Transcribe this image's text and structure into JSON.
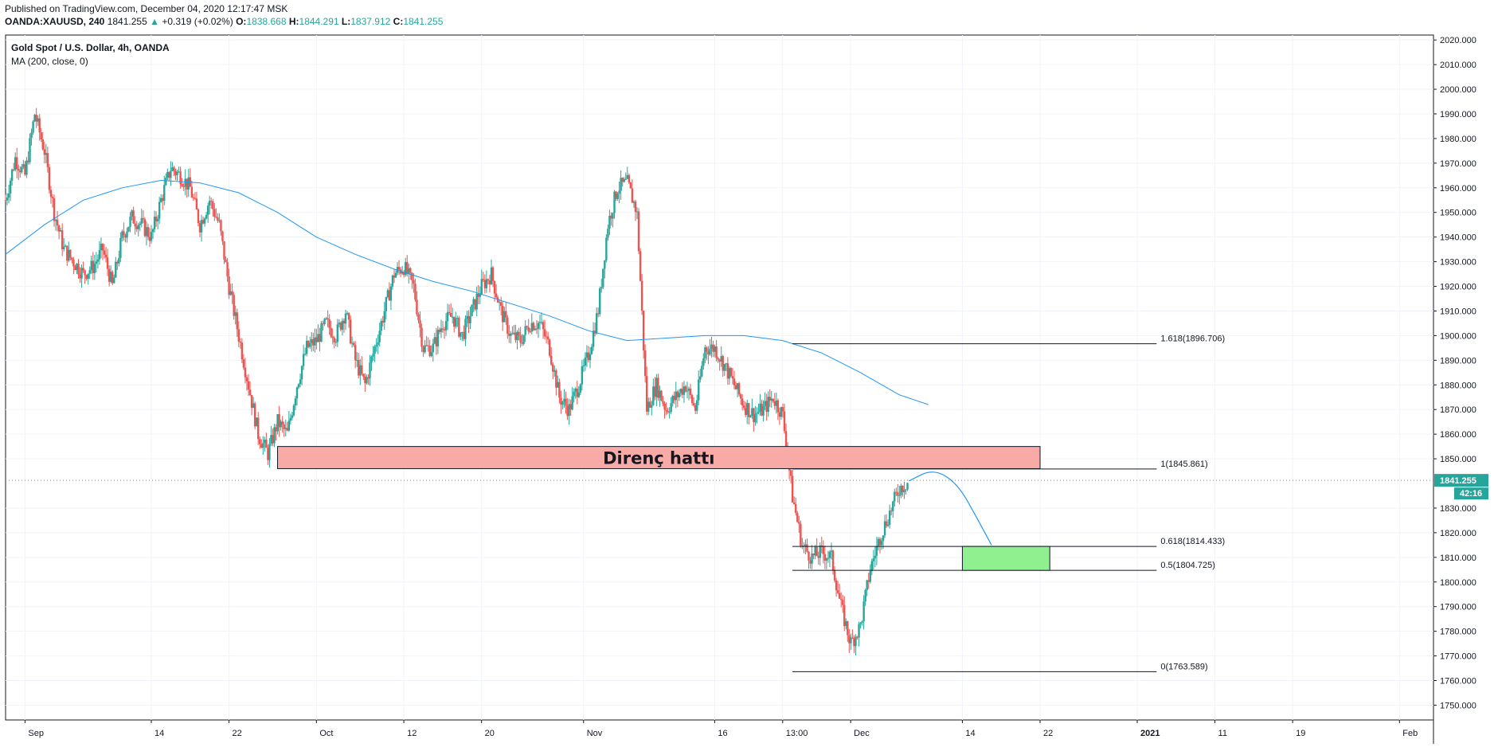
{
  "header": {
    "published": "Published on TradingView.com, December 04, 2020 12:17:47 MSK",
    "symbol": "OANDA:XAUUSD, 240",
    "price": "1841.255",
    "change": "+0.319 (+0.02%)",
    "o_label": "O:",
    "o_val": "1838.668",
    "h_label": "H:",
    "h_val": "1844.291",
    "l_label": "L:",
    "l_val": "1837.912",
    "c_label": "C:",
    "c_val": "1841.255"
  },
  "legend": {
    "title": "Gold Spot / U.S. Dollar, 4h, OANDA",
    "indicator": "MA (200, close, 0)"
  },
  "colors": {
    "up": "#26a69a",
    "down": "#ef5350",
    "ma": "#2196f3",
    "resistance_fill": "#f7aaa6",
    "target_fill": "#90f090",
    "price_tag": "#26a69a"
  },
  "chart_data": {
    "type": "candlestick",
    "ylim": [
      1744,
      2022
    ],
    "y_ticks": [
      "1750.000",
      "1760.000",
      "1770.000",
      "1780.000",
      "1790.000",
      "1800.000",
      "1810.000",
      "1820.000",
      "1830.000",
      "1850.000",
      "1860.000",
      "1870.000",
      "1880.000",
      "1890.000",
      "1900.000",
      "1910.000",
      "1920.000",
      "1930.000",
      "1940.000",
      "1950.000",
      "1960.000",
      "1970.000",
      "1980.000",
      "1990.000",
      "2000.000",
      "2010.000",
      "2020.000"
    ],
    "x_labels": [
      {
        "label": "Sep",
        "x": 0
      },
      {
        "label": "14",
        "x": 13
      },
      {
        "label": "22",
        "x": 21
      },
      {
        "label": "Oct",
        "x": 30
      },
      {
        "label": "12",
        "x": 39
      },
      {
        "label": "20",
        "x": 47
      },
      {
        "label": "Nov",
        "x": 57.5
      },
      {
        "label": "16",
        "x": 71
      },
      {
        "label": "13:00",
        "x": 78
      },
      {
        "label": "Dec",
        "x": 85
      },
      {
        "label": "14",
        "x": 96.5
      },
      {
        "label": "22",
        "x": 104.5
      },
      {
        "label": "2021",
        "x": 114.5
      },
      {
        "label": "11",
        "x": 122.5
      },
      {
        "label": "19",
        "x": 130.5
      },
      {
        "label": "Feb",
        "x": 141.5
      }
    ],
    "x_range": [
      -2,
      145
    ],
    "last_price": "1841.255",
    "countdown": "42:16",
    "last_price_value": 1841.255,
    "price_path": [
      [
        -2,
        1955
      ],
      [
        -1,
        1972
      ],
      [
        0,
        1965
      ],
      [
        1,
        1990
      ],
      [
        2,
        1975
      ],
      [
        3,
        1950
      ],
      [
        4,
        1935
      ],
      [
        5,
        1930
      ],
      [
        6,
        1925
      ],
      [
        7,
        1928
      ],
      [
        8,
        1935
      ],
      [
        9,
        1920
      ],
      [
        10,
        1940
      ],
      [
        11,
        1948
      ],
      [
        12,
        1945
      ],
      [
        13,
        1940
      ],
      [
        14,
        1955
      ],
      [
        15,
        1968
      ],
      [
        16,
        1965
      ],
      [
        17,
        1960
      ],
      [
        18,
        1945
      ],
      [
        19,
        1955
      ],
      [
        20,
        1945
      ],
      [
        21,
        1920
      ],
      [
        22,
        1900
      ],
      [
        23,
        1880
      ],
      [
        24,
        1860
      ],
      [
        25,
        1852
      ],
      [
        26,
        1865
      ],
      [
        27,
        1860
      ],
      [
        28,
        1880
      ],
      [
        29,
        1895
      ],
      [
        30,
        1898
      ],
      [
        31,
        1905
      ],
      [
        32,
        1900
      ],
      [
        33,
        1910
      ],
      [
        34,
        1890
      ],
      [
        35,
        1880
      ],
      [
        36,
        1895
      ],
      [
        37,
        1910
      ],
      [
        38,
        1925
      ],
      [
        39,
        1928
      ],
      [
        40,
        1920
      ],
      [
        41,
        1895
      ],
      [
        42,
        1895
      ],
      [
        43,
        1905
      ],
      [
        44,
        1908
      ],
      [
        45,
        1900
      ],
      [
        46,
        1910
      ],
      [
        47,
        1920
      ],
      [
        48,
        1925
      ],
      [
        49,
        1910
      ],
      [
        50,
        1900
      ],
      [
        51,
        1898
      ],
      [
        52,
        1905
      ],
      [
        53,
        1905
      ],
      [
        54,
        1895
      ],
      [
        55,
        1875
      ],
      [
        56,
        1870
      ],
      [
        57,
        1880
      ],
      [
        58,
        1892
      ],
      [
        59,
        1910
      ],
      [
        60,
        1945
      ],
      [
        61,
        1960
      ],
      [
        62,
        1962
      ],
      [
        63,
        1950
      ],
      [
        64,
        1870
      ],
      [
        65,
        1880
      ],
      [
        66,
        1870
      ],
      [
        67,
        1875
      ],
      [
        68,
        1880
      ],
      [
        69,
        1870
      ],
      [
        70,
        1895
      ],
      [
        71,
        1895
      ],
      [
        72,
        1888
      ],
      [
        73,
        1880
      ],
      [
        74,
        1872
      ],
      [
        75,
        1868
      ],
      [
        76,
        1870
      ],
      [
        77,
        1875
      ],
      [
        78,
        1868
      ],
      [
        79,
        1835
      ],
      [
        80,
        1815
      ],
      [
        81,
        1810
      ],
      [
        82,
        1812
      ],
      [
        83,
        1810
      ],
      [
        84,
        1790
      ],
      [
        85,
        1775
      ],
      [
        86,
        1782
      ],
      [
        87,
        1805
      ],
      [
        88,
        1818
      ],
      [
        89,
        1828
      ],
      [
        90,
        1838
      ],
      [
        91,
        1841
      ]
    ],
    "ma_path": [
      [
        -2,
        1933
      ],
      [
        2,
        1945
      ],
      [
        6,
        1955
      ],
      [
        10,
        1960
      ],
      [
        14,
        1963
      ],
      [
        18,
        1962
      ],
      [
        22,
        1958
      ],
      [
        26,
        1950
      ],
      [
        30,
        1940
      ],
      [
        34,
        1933
      ],
      [
        38,
        1927
      ],
      [
        42,
        1922
      ],
      [
        46,
        1918
      ],
      [
        50,
        1913
      ],
      [
        54,
        1908
      ],
      [
        58,
        1902
      ],
      [
        62,
        1898
      ],
      [
        66,
        1899
      ],
      [
        70,
        1900
      ],
      [
        74,
        1900
      ],
      [
        78,
        1898
      ],
      [
        82,
        1893
      ],
      [
        86,
        1885
      ],
      [
        90,
        1876
      ],
      [
        93,
        1872
      ]
    ],
    "projection_path": [
      [
        91,
        1841
      ],
      [
        93.5,
        1846
      ],
      [
        96,
        1840
      ],
      [
        98,
        1826
      ],
      [
        99.5,
        1815
      ]
    ],
    "resistance_zone": {
      "x0": 26,
      "x1": 104.5,
      "y0": 1846,
      "y1": 1855,
      "label": "Direnç hattı"
    },
    "target_zone": {
      "x0": 96.5,
      "x1": 105.5,
      "y0": 1804.725,
      "y1": 1814.433
    },
    "fib_levels": [
      {
        "label": "1.618(1896.706)",
        "value": 1896.706,
        "x0": 79
      },
      {
        "label": "1(1845.861)",
        "value": 1845.861,
        "x0": 79
      },
      {
        "label": "0.618(1814.433)",
        "value": 1814.433,
        "x0": 79
      },
      {
        "label": "0.5(1804.725)",
        "value": 1804.725,
        "x0": 79
      },
      {
        "label": "0(1763.589)",
        "value": 1763.589,
        "x0": 79
      }
    ],
    "fib_x1": 116.5
  }
}
